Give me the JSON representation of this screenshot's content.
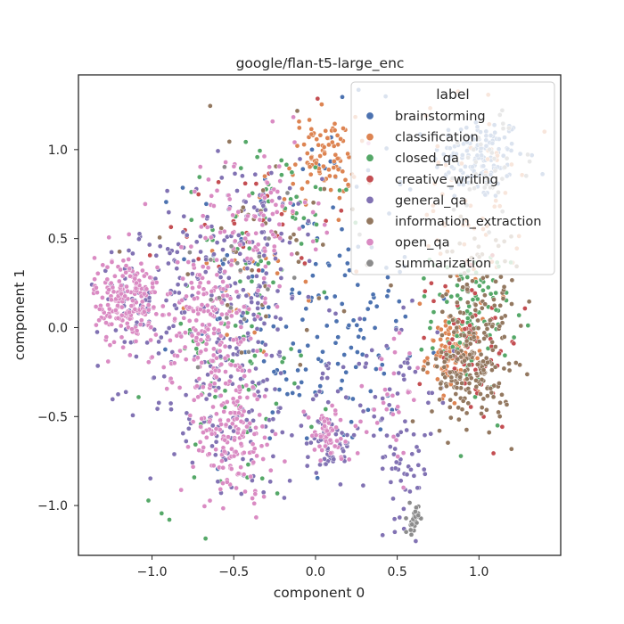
{
  "chart_data": {
    "type": "scatter",
    "title": "google/flan-t5-large_enc",
    "xlabel": "component 0",
    "ylabel": "component 1",
    "xlim": [
      -1.45,
      1.5
    ],
    "ylim": [
      -1.28,
      1.42
    ],
    "x_ticks": [
      "−1.0",
      "−0.5",
      "0.0",
      "0.5",
      "1.0"
    ],
    "x_tick_values": [
      -1.0,
      -0.5,
      0.0,
      0.5,
      1.0
    ],
    "y_ticks": [
      "−1.0",
      "−0.5",
      "0.0",
      "0.5",
      "1.0"
    ],
    "y_tick_values": [
      -1.0,
      -0.5,
      0.0,
      0.5,
      1.0
    ],
    "grid": false,
    "legend": {
      "title": "label",
      "placement": "top-right"
    },
    "series": [
      {
        "name": "brainstorming",
        "color": "#4c72b0",
        "clusters": [
          {
            "cx": 1.0,
            "cy": 0.95,
            "sx": 0.14,
            "sy": 0.12,
            "n": 140
          },
          {
            "cx": -0.05,
            "cy": 0.25,
            "sx": 0.35,
            "sy": 0.45,
            "n": 120
          },
          {
            "cx": 0.2,
            "cy": -0.15,
            "sx": 0.25,
            "sy": 0.3,
            "n": 60
          }
        ]
      },
      {
        "name": "classification",
        "color": "#dd8452",
        "clusters": [
          {
            "cx": 0.05,
            "cy": 0.95,
            "sx": 0.1,
            "sy": 0.12,
            "n": 90
          },
          {
            "cx": 0.85,
            "cy": -0.15,
            "sx": 0.08,
            "sy": 0.1,
            "n": 110
          },
          {
            "cx": 0.95,
            "cy": 0.7,
            "sx": 0.15,
            "sy": 0.3,
            "n": 60
          },
          {
            "cx": -0.35,
            "cy": 0.35,
            "sx": 0.2,
            "sy": 0.25,
            "n": 30
          }
        ]
      },
      {
        "name": "closed_qa",
        "color": "#55a868",
        "clusters": [
          {
            "cx": 0.95,
            "cy": 0.05,
            "sx": 0.12,
            "sy": 0.2,
            "n": 100
          },
          {
            "cx": -0.5,
            "cy": -0.2,
            "sx": 0.25,
            "sy": 0.4,
            "n": 80
          },
          {
            "cx": -0.2,
            "cy": 0.6,
            "sx": 0.2,
            "sy": 0.25,
            "n": 40
          }
        ]
      },
      {
        "name": "creative_writing",
        "color": "#c44e52",
        "clusters": [
          {
            "cx": 0.95,
            "cy": -0.05,
            "sx": 0.15,
            "sy": 0.25,
            "n": 60
          },
          {
            "cx": -0.4,
            "cy": 0.6,
            "sx": 0.25,
            "sy": 0.2,
            "n": 30
          }
        ]
      },
      {
        "name": "general_qa",
        "color": "#8172b3",
        "clusters": [
          {
            "cx": -0.55,
            "cy": -0.3,
            "sx": 0.25,
            "sy": 0.35,
            "n": 180
          },
          {
            "cx": -0.45,
            "cy": 0.45,
            "sx": 0.25,
            "sy": 0.25,
            "n": 140
          },
          {
            "cx": 0.1,
            "cy": -0.65,
            "sx": 0.08,
            "sy": 0.1,
            "n": 50
          },
          {
            "cx": 0.55,
            "cy": -0.8,
            "sx": 0.08,
            "sy": 0.15,
            "n": 40
          },
          {
            "cx": -1.1,
            "cy": 0.15,
            "sx": 0.12,
            "sy": 0.15,
            "n": 60
          },
          {
            "cx": 0.4,
            "cy": -0.3,
            "sx": 0.25,
            "sy": 0.25,
            "n": 60
          }
        ]
      },
      {
        "name": "information_extraction",
        "color": "#937860",
        "clusters": [
          {
            "cx": 0.95,
            "cy": -0.25,
            "sx": 0.12,
            "sy": 0.15,
            "n": 160
          },
          {
            "cx": 1.0,
            "cy": 0.15,
            "sx": 0.12,
            "sy": 0.2,
            "n": 80
          },
          {
            "cx": -0.3,
            "cy": 0.5,
            "sx": 0.3,
            "sy": 0.3,
            "n": 40
          }
        ]
      },
      {
        "name": "open_qa",
        "color": "#da8bc3",
        "clusters": [
          {
            "cx": -1.15,
            "cy": 0.15,
            "sx": 0.1,
            "sy": 0.13,
            "n": 200
          },
          {
            "cx": -0.65,
            "cy": 0.0,
            "sx": 0.15,
            "sy": 0.2,
            "n": 180
          },
          {
            "cx": -0.5,
            "cy": -0.6,
            "sx": 0.12,
            "sy": 0.18,
            "n": 160
          },
          {
            "cx": -0.4,
            "cy": 0.6,
            "sx": 0.2,
            "sy": 0.2,
            "n": 100
          },
          {
            "cx": 0.08,
            "cy": -0.6,
            "sx": 0.07,
            "sy": 0.08,
            "n": 60
          },
          {
            "cx": 0.5,
            "cy": -0.4,
            "sx": 0.1,
            "sy": 0.2,
            "n": 30
          }
        ]
      },
      {
        "name": "summarization",
        "color": "#8c8c8c",
        "clusters": [
          {
            "cx": 0.6,
            "cy": -1.08,
            "sx": 0.015,
            "sy": 0.04,
            "n": 30
          },
          {
            "cx": 1.05,
            "cy": 0.9,
            "sx": 0.15,
            "sy": 0.15,
            "n": 40
          },
          {
            "cx": -0.4,
            "cy": 0.3,
            "sx": 0.3,
            "sy": 0.3,
            "n": 20
          }
        ]
      }
    ]
  }
}
